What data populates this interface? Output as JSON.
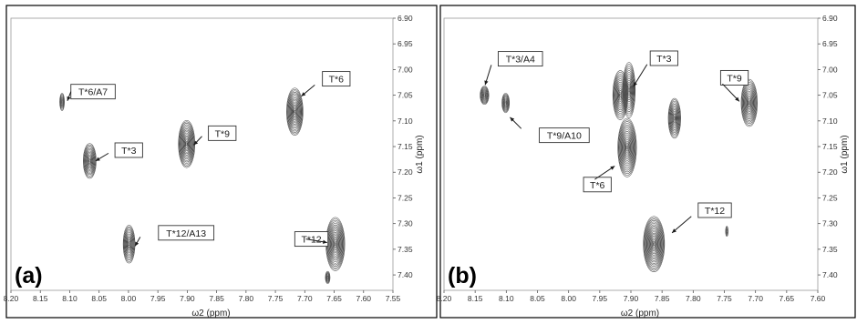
{
  "chart_data": [
    {
      "type": "scatter",
      "panel_label": "(a)",
      "xlabel": "ω2 (ppm)",
      "ylabel": "ω1 (ppm)",
      "xlim": [
        8.2,
        7.55
      ],
      "ylim": [
        6.9,
        7.43
      ],
      "x_reversed": true,
      "y_reversed": true,
      "grid": false,
      "x_ticks": [
        "8.20",
        "8.15",
        "8.10",
        "8.05",
        "8.00",
        "7.95",
        "7.90",
        "7.85",
        "7.80",
        "7.75",
        "7.70",
        "7.65",
        "7.60",
        "7.55"
      ],
      "y_ticks": [
        "6.90",
        "6.95",
        "7.00",
        "7.05",
        "7.10",
        "7.15",
        "7.20",
        "7.25",
        "7.30",
        "7.35",
        "7.40"
      ],
      "peaks": [
        {
          "x": 8.113,
          "y": 7.063,
          "dx": 0.004,
          "dy": 0.017
        },
        {
          "x": 8.066,
          "y": 7.178,
          "dx": 0.011,
          "dy": 0.034
        },
        {
          "x": 7.999,
          "y": 7.34,
          "dx": 0.01,
          "dy": 0.037
        },
        {
          "x": 7.901,
          "y": 7.145,
          "dx": 0.014,
          "dy": 0.046
        },
        {
          "x": 7.717,
          "y": 7.082,
          "dx": 0.014,
          "dy": 0.046
        },
        {
          "x": 7.648,
          "y": 7.34,
          "dx": 0.016,
          "dy": 0.052
        },
        {
          "x": 7.661,
          "y": 7.405,
          "dx": 0.004,
          "dy": 0.012
        }
      ],
      "annotations": [
        {
          "text": "T*6/A7",
          "box": [
            8.098,
            7.043
          ],
          "arrow_from": [
            8.098,
            7.043
          ],
          "arrow_to": [
            8.104,
            7.061
          ]
        },
        {
          "text": "T*3",
          "box": [
            8.023,
            7.157
          ],
          "arrow_from": [
            8.034,
            7.163
          ],
          "arrow_to": [
            8.056,
            7.178
          ]
        },
        {
          "text": "T*9",
          "box": [
            7.864,
            7.124
          ],
          "arrow_from": [
            7.875,
            7.13
          ],
          "arrow_to": [
            7.889,
            7.147
          ]
        },
        {
          "text": "T*6",
          "box": [
            7.67,
            7.018
          ],
          "arrow_from": [
            7.683,
            7.03
          ],
          "arrow_to": [
            7.706,
            7.052
          ]
        },
        {
          "text": "T*12/A13",
          "box": [
            7.949,
            7.318
          ],
          "arrow_from": [
            7.98,
            7.326
          ],
          "arrow_to": [
            7.989,
            7.344
          ]
        },
        {
          "text": "T*12",
          "box": [
            7.717,
            7.33
          ],
          "arrow_from": [
            7.698,
            7.33
          ],
          "arrow_to": [
            7.662,
            7.337
          ]
        }
      ]
    },
    {
      "type": "scatter",
      "panel_label": "(b)",
      "xlabel": "ω2 (ppm)",
      "ylabel": "ω1 (ppm)",
      "xlim": [
        8.2,
        7.6
      ],
      "ylim": [
        6.9,
        7.43
      ],
      "x_reversed": true,
      "y_reversed": true,
      "grid": false,
      "x_ticks": [
        "8.20",
        "8.15",
        "8.10",
        "8.05",
        "8.00",
        "7.95",
        "7.90",
        "7.85",
        "7.80",
        "7.75",
        "7.70",
        "7.65",
        "7.60"
      ],
      "y_ticks": [
        "6.90",
        "6.95",
        "7.00",
        "7.05",
        "7.10",
        "7.15",
        "7.20",
        "7.25",
        "7.30",
        "7.35",
        "7.40"
      ],
      "peaks": [
        {
          "x": 8.135,
          "y": 7.05,
          "dx": 0.007,
          "dy": 0.018
        },
        {
          "x": 8.101,
          "y": 7.065,
          "dx": 0.006,
          "dy": 0.019
        },
        {
          "x": 7.917,
          "y": 7.05,
          "dx": 0.012,
          "dy": 0.048
        },
        {
          "x": 7.903,
          "y": 7.04,
          "dx": 0.01,
          "dy": 0.054
        },
        {
          "x": 7.906,
          "y": 7.152,
          "dx": 0.015,
          "dy": 0.057
        },
        {
          "x": 7.83,
          "y": 7.095,
          "dx": 0.01,
          "dy": 0.039
        },
        {
          "x": 7.71,
          "y": 7.065,
          "dx": 0.013,
          "dy": 0.046
        },
        {
          "x": 7.863,
          "y": 7.34,
          "dx": 0.017,
          "dy": 0.054
        },
        {
          "x": 7.746,
          "y": 7.315,
          "dx": 0.002,
          "dy": 0.01
        }
      ],
      "annotations": [
        {
          "text": "T*3/A4",
          "box": [
            8.113,
            6.979
          ],
          "arrow_from": [
            8.124,
            6.991
          ],
          "arrow_to": [
            8.134,
            7.03
          ]
        },
        {
          "text": "T*9/A10",
          "box": [
            8.047,
            7.128
          ],
          "arrow_from": [
            8.076,
            7.115
          ],
          "arrow_to": [
            8.094,
            7.093
          ]
        },
        {
          "text": "T*3",
          "box": [
            7.869,
            6.978
          ],
          "arrow_from": [
            7.874,
            6.99
          ],
          "arrow_to": [
            7.896,
            7.033
          ]
        },
        {
          "text": "T*9",
          "box": [
            7.756,
            7.016
          ],
          "arrow_from": [
            7.753,
            7.028
          ],
          "arrow_to": [
            7.726,
            7.062
          ]
        },
        {
          "text": "T*6",
          "box": [
            7.976,
            7.224
          ],
          "arrow_from": [
            7.958,
            7.214
          ],
          "arrow_to": [
            7.926,
            7.188
          ]
        },
        {
          "text": "T*12",
          "box": [
            7.792,
            7.274
          ],
          "arrow_from": [
            7.803,
            7.286
          ],
          "arrow_to": [
            7.834,
            7.318
          ]
        }
      ]
    }
  ],
  "colors": {
    "contour": "#4f4f4f",
    "frame": "#000000",
    "axis": "#555555",
    "callout_border": "#333333",
    "arrow": "#1a1a1a"
  }
}
